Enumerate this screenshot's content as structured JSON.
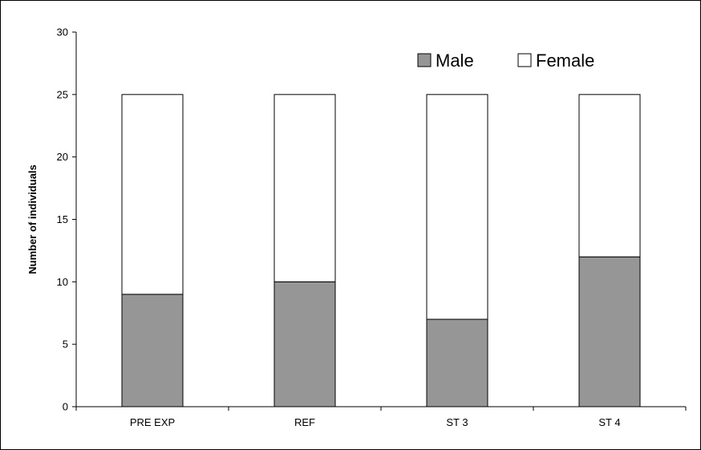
{
  "chart_data": {
    "type": "bar",
    "stacked": true,
    "categories": [
      "PRE EXP",
      "REF",
      "ST 3",
      "ST 4"
    ],
    "series": [
      {
        "name": "Male",
        "values": [
          9,
          10,
          7,
          12
        ],
        "color": "#969696"
      },
      {
        "name": "Female",
        "values": [
          16,
          15,
          18,
          13
        ],
        "color": "#ffffff"
      }
    ],
    "title": "",
    "xlabel": "",
    "ylabel": "Number of individuals",
    "ylim": [
      0,
      30
    ],
    "yticks": [
      0,
      5,
      10,
      15,
      20,
      25,
      30
    ],
    "grid": false,
    "legend_position": "top-right"
  }
}
